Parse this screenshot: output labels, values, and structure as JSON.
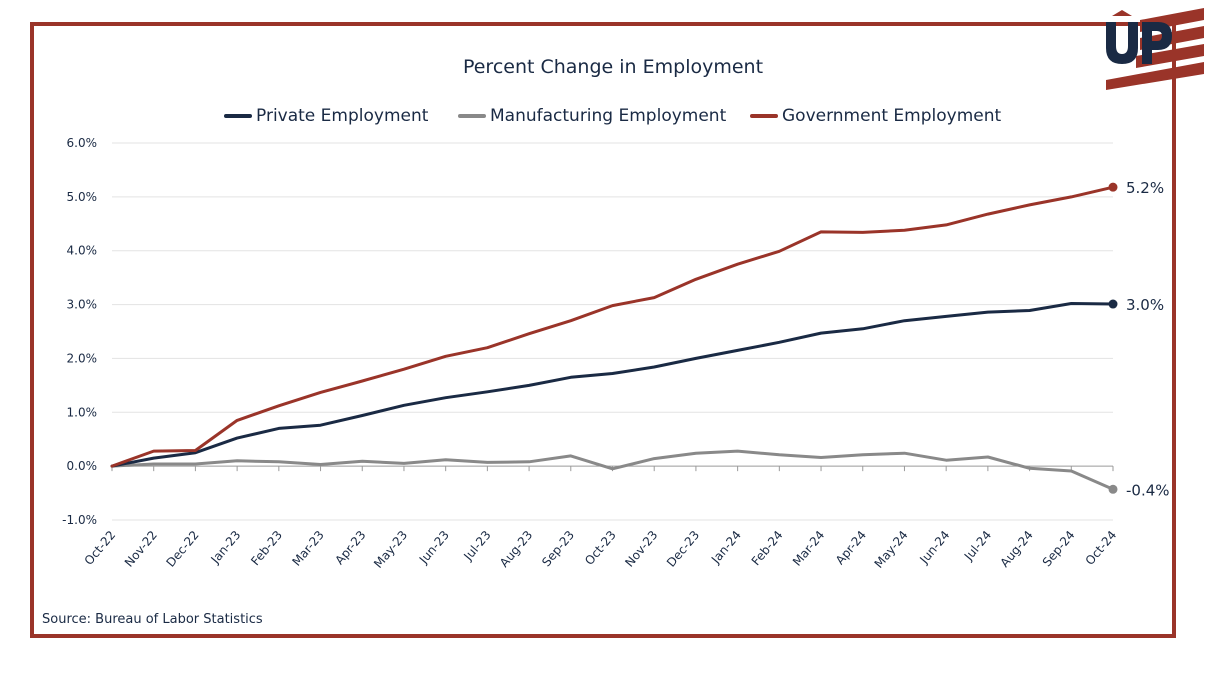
{
  "source": "Source: Bureau of Labor Statistics",
  "chart_data": {
    "type": "line",
    "title": "Percent Change in Employment",
    "xlabel": "",
    "ylabel": "",
    "ylim": [
      -1.0,
      6.0
    ],
    "yticks": [
      "-1.0%",
      "0.0%",
      "1.0%",
      "2.0%",
      "3.0%",
      "4.0%",
      "5.0%",
      "6.0%"
    ],
    "grid": true,
    "legend_position": "top",
    "categories": [
      "Oct-22",
      "Nov-22",
      "Dec-22",
      "Jan-23",
      "Feb-23",
      "Mar-23",
      "Apr-23",
      "May-23",
      "Jun-23",
      "Jul-23",
      "Aug-23",
      "Sep-23",
      "Oct-23",
      "Nov-23",
      "Dec-23",
      "Jan-24",
      "Feb-24",
      "Mar-24",
      "Apr-24",
      "May-24",
      "Jun-24",
      "Jul-24",
      "Aug-24",
      "Sep-24",
      "Oct-24"
    ],
    "series": [
      {
        "name": "Private Employment",
        "color": "#1a2a44",
        "end_label": "3.0%",
        "values": [
          0.0,
          0.15,
          0.25,
          0.52,
          0.7,
          0.76,
          0.94,
          1.13,
          1.27,
          1.38,
          1.5,
          1.65,
          1.72,
          1.84,
          2.0,
          2.15,
          2.3,
          2.47,
          2.55,
          2.7,
          2.78,
          2.86,
          2.89,
          3.02,
          3.01
        ]
      },
      {
        "name": "Manufacturing Employment",
        "color": "#898989",
        "end_label": "-0.4%",
        "values": [
          0.0,
          0.04,
          0.04,
          0.1,
          0.08,
          0.03,
          0.09,
          0.05,
          0.12,
          0.07,
          0.08,
          0.19,
          -0.05,
          0.14,
          0.24,
          0.28,
          0.21,
          0.16,
          0.21,
          0.24,
          0.11,
          0.17,
          -0.04,
          -0.09,
          -0.43
        ]
      },
      {
        "name": "Government Employment",
        "color": "#9a3429",
        "end_label": "5.2%",
        "values": [
          0.0,
          0.28,
          0.29,
          0.85,
          1.12,
          1.37,
          1.58,
          1.8,
          2.04,
          2.2,
          2.46,
          2.7,
          2.98,
          3.13,
          3.47,
          3.75,
          3.99,
          4.35,
          4.34,
          4.38,
          4.48,
          4.68,
          4.85,
          5.0,
          5.18
        ]
      }
    ]
  }
}
